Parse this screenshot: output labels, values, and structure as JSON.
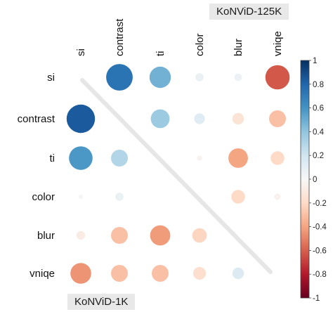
{
  "chart_data": {
    "type": "heatmap",
    "variables": [
      "si",
      "contrast",
      "ti",
      "color",
      "blur",
      "vniqe"
    ],
    "annotations": {
      "upper_triangle": "KoNViD-125K",
      "lower_triangle": "KoNViD-1K"
    },
    "colorbar": {
      "min": -1,
      "max": 1,
      "ticks": [
        "1",
        "0.8",
        "0.6",
        "0.4",
        "0.2",
        "0",
        "-0.2",
        "-0.4",
        "-0.6",
        "-0.8",
        "-1"
      ],
      "colors": {
        "positive": "#053061",
        "zero": "#f7f7f7",
        "negative": "#67001f"
      }
    },
    "upper_cells": [
      {
        "row": "si",
        "col": "contrast",
        "value": 0.74
      },
      {
        "row": "si",
        "col": "ti",
        "value": 0.48
      },
      {
        "row": "si",
        "col": "color",
        "value": 0.07
      },
      {
        "row": "si",
        "col": "blur",
        "value": 0.06
      },
      {
        "row": "si",
        "col": "vniqe",
        "value": -0.62
      },
      {
        "row": "contrast",
        "col": "ti",
        "value": 0.37
      },
      {
        "row": "contrast",
        "col": "color",
        "value": 0.12
      },
      {
        "row": "contrast",
        "col": "blur",
        "value": -0.14
      },
      {
        "row": "contrast",
        "col": "vniqe",
        "value": -0.3
      },
      {
        "row": "ti",
        "col": "color",
        "value": -0.03
      },
      {
        "row": "ti",
        "col": "blur",
        "value": -0.4
      },
      {
        "row": "ti",
        "col": "vniqe",
        "value": -0.2
      },
      {
        "row": "color",
        "col": "blur",
        "value": -0.2
      },
      {
        "row": "color",
        "col": "vniqe",
        "value": -0.04
      },
      {
        "row": "blur",
        "col": "vniqe",
        "value": null
      }
    ],
    "lower_cells": [
      {
        "row": "contrast",
        "col": "si",
        "value": 0.84
      },
      {
        "row": "ti",
        "col": "si",
        "value": 0.58
      },
      {
        "row": "ti",
        "col": "contrast",
        "value": 0.3
      },
      {
        "row": "color",
        "col": "si",
        "value": 0.02
      },
      {
        "row": "color",
        "col": "contrast",
        "value": 0.07
      },
      {
        "row": "blur",
        "col": "si",
        "value": -0.08
      },
      {
        "row": "blur",
        "col": "contrast",
        "value": -0.3
      },
      {
        "row": "blur",
        "col": "ti",
        "value": -0.43
      },
      {
        "row": "blur",
        "col": "color",
        "value": -0.22
      },
      {
        "row": "vniqe",
        "col": "si",
        "value": -0.45
      },
      {
        "row": "vniqe",
        "col": "contrast",
        "value": -0.3
      },
      {
        "row": "vniqe",
        "col": "ti",
        "value": -0.3
      },
      {
        "row": "vniqe",
        "col": "color",
        "value": -0.17
      },
      {
        "row": "vniqe",
        "col": "blur",
        "value": 0.14
      }
    ]
  }
}
